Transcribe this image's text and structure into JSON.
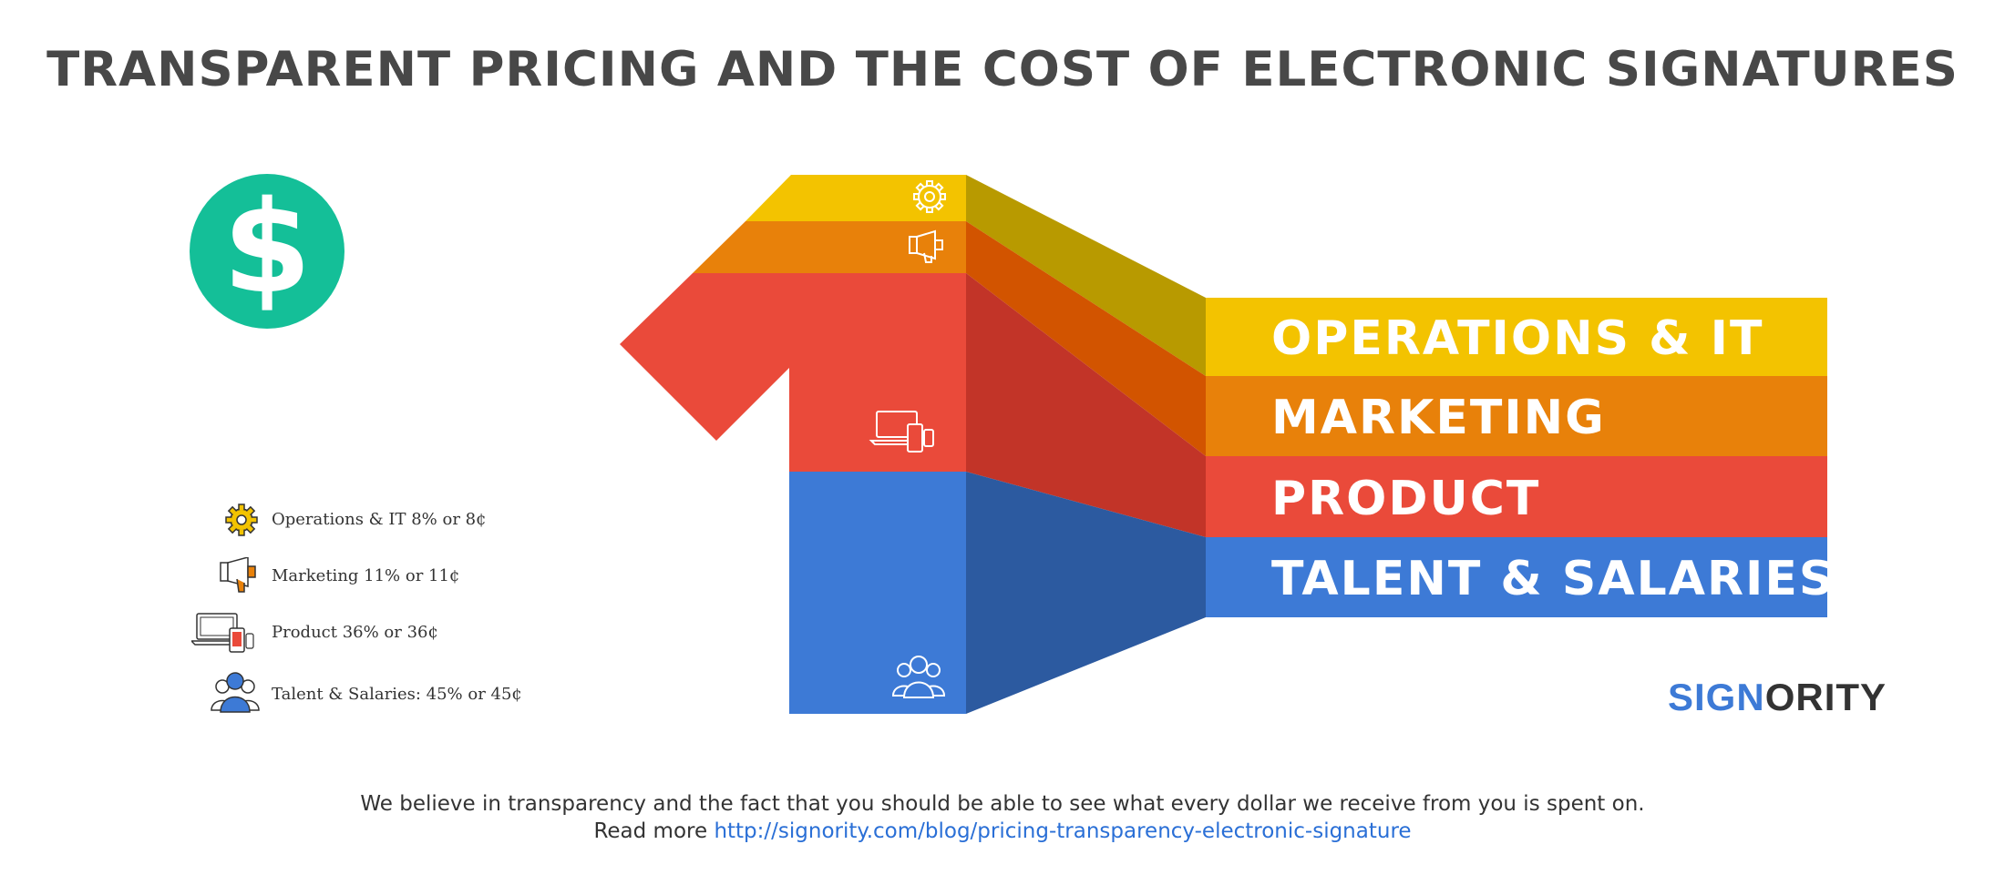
{
  "title": "TRANSPARENT PRICING AND THE COST OF ELECTRONIC SIGNATURES",
  "badge": {
    "glyph": "$",
    "color": "#14bf98"
  },
  "legend": [
    {
      "label": "Operations & IT  8% or 8¢",
      "icon": "gear-icon"
    },
    {
      "label": "Marketing 11% or 11¢",
      "icon": "megaphone-icon"
    },
    {
      "label": "Product 36% or 36¢",
      "icon": "devices-icon"
    },
    {
      "label": "Talent & Salaries: 45% or 45¢",
      "icon": "users-icon"
    }
  ],
  "chart_data": {
    "type": "area",
    "title": "",
    "categories": [
      "Operations & IT",
      "Marketing",
      "Product",
      "Talent & Salaries"
    ],
    "values": [
      8,
      11,
      36,
      45
    ],
    "unit": "%",
    "band_labels": [
      "OPERATIONS & IT",
      "MARKETING",
      "PRODUCT",
      "TALENT & SALARIES"
    ],
    "colors": [
      "#f3c300",
      "#e8810a",
      "#ea4a3a",
      "#3d7ad6"
    ],
    "shade_colors": [
      "#b89a00",
      "#d25400",
      "#c23428",
      "#2c5aa0"
    ]
  },
  "brand": {
    "part1": "SIGN",
    "part2": "ORITY",
    "color1": "#3d7ad6",
    "color2": "#333333"
  },
  "footer": {
    "line1": "We believe in transparency and the fact that you should be able to see what every dollar we receive from you is spent on.",
    "read_more": "Read more ",
    "link": "http://signority.com/blog/pricing-transparency-electronic-signature"
  }
}
